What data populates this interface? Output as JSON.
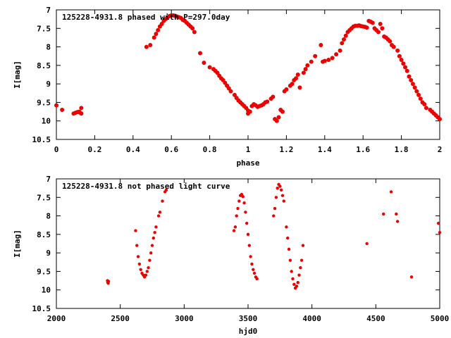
{
  "chart_data": [
    {
      "type": "scatter",
      "title": "125228-4931.8 phased with P=297.0day",
      "xlabel": "phase",
      "ylabel": "I[mag]",
      "xlim": [
        0,
        2
      ],
      "ylim": [
        10.5,
        7
      ],
      "y_inverted": true,
      "xticks": [
        "0",
        "0.2",
        "0.4",
        "0.6",
        "0.8",
        "1",
        "1.2",
        "1.4",
        "1.6",
        "1.8",
        "2"
      ],
      "yticks": [
        "7",
        "7.5",
        "8",
        "8.5",
        "9",
        "9.5",
        "10",
        "10.5"
      ],
      "marker_color": "#ee0000",
      "marker": "filled-circle",
      "points": [
        [
          0.0,
          9.58
        ],
        [
          0.03,
          9.7
        ],
        [
          0.09,
          9.8
        ],
        [
          0.1,
          9.78
        ],
        [
          0.11,
          9.76
        ],
        [
          0.12,
          9.75
        ],
        [
          0.13,
          9.8
        ],
        [
          0.13,
          9.65
        ],
        [
          0.12,
          9.77
        ],
        [
          0.47,
          8.0
        ],
        [
          0.49,
          7.95
        ],
        [
          0.51,
          7.75
        ],
        [
          0.52,
          7.65
        ],
        [
          0.53,
          7.55
        ],
        [
          0.54,
          7.45
        ],
        [
          0.55,
          7.38
        ],
        [
          0.56,
          7.3
        ],
        [
          0.57,
          7.25
        ],
        [
          0.58,
          7.2
        ],
        [
          0.59,
          7.17
        ],
        [
          0.6,
          7.15
        ],
        [
          0.61,
          7.15
        ],
        [
          0.62,
          7.16
        ],
        [
          0.63,
          7.18
        ],
        [
          0.64,
          7.2
        ],
        [
          0.65,
          7.22
        ],
        [
          0.66,
          7.27
        ],
        [
          0.67,
          7.3
        ],
        [
          0.68,
          7.35
        ],
        [
          0.69,
          7.4
        ],
        [
          0.7,
          7.45
        ],
        [
          0.71,
          7.5
        ],
        [
          0.72,
          7.6
        ],
        [
          0.75,
          8.17
        ],
        [
          0.77,
          8.43
        ],
        [
          0.8,
          8.55
        ],
        [
          0.82,
          8.6
        ],
        [
          0.83,
          8.65
        ],
        [
          0.84,
          8.7
        ],
        [
          0.85,
          8.78
        ],
        [
          0.86,
          8.85
        ],
        [
          0.87,
          8.9
        ],
        [
          0.88,
          8.97
        ],
        [
          0.89,
          9.05
        ],
        [
          0.9,
          9.12
        ],
        [
          0.91,
          9.2
        ],
        [
          0.93,
          9.3
        ],
        [
          0.94,
          9.38
        ],
        [
          0.95,
          9.45
        ],
        [
          0.96,
          9.5
        ],
        [
          0.97,
          9.55
        ],
        [
          0.98,
          9.6
        ],
        [
          0.99,
          9.65
        ],
        [
          1.0,
          9.72
        ],
        [
          1.0,
          9.8
        ],
        [
          1.01,
          9.75
        ],
        [
          1.02,
          9.6
        ],
        [
          1.03,
          9.55
        ],
        [
          1.04,
          9.58
        ],
        [
          1.05,
          9.62
        ],
        [
          1.06,
          9.6
        ],
        [
          1.07,
          9.58
        ],
        [
          1.08,
          9.55
        ],
        [
          1.09,
          9.5
        ],
        [
          1.1,
          9.48
        ],
        [
          1.12,
          9.4
        ],
        [
          1.13,
          9.35
        ],
        [
          1.14,
          9.95
        ],
        [
          1.15,
          10.0
        ],
        [
          1.16,
          9.9
        ],
        [
          1.17,
          9.7
        ],
        [
          1.18,
          9.75
        ],
        [
          1.19,
          9.2
        ],
        [
          1.2,
          9.15
        ],
        [
          1.22,
          9.05
        ],
        [
          1.23,
          9.0
        ],
        [
          1.24,
          8.9
        ],
        [
          1.25,
          8.85
        ],
        [
          1.26,
          8.75
        ],
        [
          1.27,
          9.1
        ],
        [
          1.29,
          8.7
        ],
        [
          1.3,
          8.6
        ],
        [
          1.31,
          8.5
        ],
        [
          1.33,
          8.4
        ],
        [
          1.35,
          8.25
        ],
        [
          1.38,
          7.95
        ],
        [
          1.39,
          8.4
        ],
        [
          1.4,
          8.38
        ],
        [
          1.42,
          8.35
        ],
        [
          1.44,
          8.3
        ],
        [
          1.46,
          8.2
        ],
        [
          1.48,
          8.1
        ],
        [
          1.49,
          7.9
        ],
        [
          1.5,
          7.8
        ],
        [
          1.51,
          7.7
        ],
        [
          1.52,
          7.6
        ],
        [
          1.53,
          7.55
        ],
        [
          1.54,
          7.5
        ],
        [
          1.55,
          7.45
        ],
        [
          1.56,
          7.43
        ],
        [
          1.57,
          7.43
        ],
        [
          1.58,
          7.42
        ],
        [
          1.59,
          7.44
        ],
        [
          1.6,
          7.45
        ],
        [
          1.61,
          7.46
        ],
        [
          1.62,
          7.48
        ],
        [
          1.63,
          7.3
        ],
        [
          1.64,
          7.32
        ],
        [
          1.65,
          7.35
        ],
        [
          1.66,
          7.5
        ],
        [
          1.67,
          7.55
        ],
        [
          1.68,
          7.6
        ],
        [
          1.69,
          7.38
        ],
        [
          1.7,
          7.5
        ],
        [
          1.71,
          7.72
        ],
        [
          1.72,
          7.75
        ],
        [
          1.73,
          7.8
        ],
        [
          1.74,
          7.85
        ],
        [
          1.75,
          7.95
        ],
        [
          1.76,
          8.0
        ],
        [
          1.78,
          8.1
        ],
        [
          1.79,
          8.25
        ],
        [
          1.8,
          8.35
        ],
        [
          1.81,
          8.45
        ],
        [
          1.82,
          8.55
        ],
        [
          1.83,
          8.65
        ],
        [
          1.84,
          8.8
        ],
        [
          1.85,
          8.9
        ],
        [
          1.86,
          9.0
        ],
        [
          1.87,
          9.1
        ],
        [
          1.88,
          9.2
        ],
        [
          1.89,
          9.3
        ],
        [
          1.9,
          9.4
        ],
        [
          1.91,
          9.5
        ],
        [
          1.92,
          9.55
        ],
        [
          1.93,
          9.65
        ],
        [
          1.95,
          9.7
        ],
        [
          1.96,
          9.75
        ],
        [
          1.97,
          9.8
        ],
        [
          1.98,
          9.85
        ],
        [
          1.99,
          9.9
        ],
        [
          2.0,
          9.95
        ]
      ]
    },
    {
      "type": "scatter",
      "title": "125228-4931.8 not phased light curve",
      "xlabel": "hjd0",
      "ylabel": "I[mag]",
      "xlim": [
        2000,
        5000
      ],
      "ylim": [
        10.5,
        7
      ],
      "y_inverted": true,
      "xticks": [
        "2000",
        "2500",
        "3000",
        "3500",
        "4000",
        "4500",
        "5000"
      ],
      "yticks": [
        "7",
        "7.5",
        "8",
        "8.5",
        "9",
        "9.5",
        "10",
        "10.5"
      ],
      "marker_color": "#ee0000",
      "marker": "filled-circle",
      "points": [
        [
          2400,
          9.75
        ],
        [
          2402,
          9.8
        ],
        [
          2404,
          9.78
        ],
        [
          2406,
          9.82
        ],
        [
          2408,
          9.77
        ],
        [
          2620,
          8.4
        ],
        [
          2630,
          8.8
        ],
        [
          2640,
          9.1
        ],
        [
          2650,
          9.3
        ],
        [
          2660,
          9.45
        ],
        [
          2670,
          9.55
        ],
        [
          2680,
          9.6
        ],
        [
          2690,
          9.65
        ],
        [
          2700,
          9.6
        ],
        [
          2710,
          9.5
        ],
        [
          2720,
          9.4
        ],
        [
          2730,
          9.2
        ],
        [
          2740,
          9.0
        ],
        [
          2750,
          8.8
        ],
        [
          2760,
          8.6
        ],
        [
          2770,
          8.45
        ],
        [
          2780,
          8.3
        ],
        [
          2800,
          8.0
        ],
        [
          2810,
          7.9
        ],
        [
          2830,
          7.6
        ],
        [
          2850,
          7.35
        ],
        [
          2860,
          7.3
        ],
        [
          3390,
          8.4
        ],
        [
          3400,
          8.3
        ],
        [
          3410,
          8.0
        ],
        [
          3420,
          7.8
        ],
        [
          3430,
          7.6
        ],
        [
          3440,
          7.45
        ],
        [
          3450,
          7.42
        ],
        [
          3460,
          7.48
        ],
        [
          3470,
          7.65
        ],
        [
          3480,
          7.9
        ],
        [
          3490,
          8.2
        ],
        [
          3500,
          8.5
        ],
        [
          3510,
          8.8
        ],
        [
          3520,
          9.1
        ],
        [
          3530,
          9.3
        ],
        [
          3540,
          9.45
        ],
        [
          3550,
          9.55
        ],
        [
          3560,
          9.65
        ],
        [
          3570,
          9.7
        ],
        [
          3700,
          8.0
        ],
        [
          3710,
          7.8
        ],
        [
          3720,
          7.5
        ],
        [
          3730,
          7.25
        ],
        [
          3740,
          7.15
        ],
        [
          3750,
          7.2
        ],
        [
          3760,
          7.3
        ],
        [
          3770,
          7.45
        ],
        [
          3780,
          7.6
        ],
        [
          3800,
          8.3
        ],
        [
          3810,
          8.6
        ],
        [
          3820,
          8.9
        ],
        [
          3830,
          9.2
        ],
        [
          3840,
          9.5
        ],
        [
          3850,
          9.7
        ],
        [
          3860,
          9.85
        ],
        [
          3870,
          9.95
        ],
        [
          3880,
          9.9
        ],
        [
          3890,
          9.8
        ],
        [
          3900,
          9.6
        ],
        [
          3910,
          9.4
        ],
        [
          3920,
          9.2
        ],
        [
          3930,
          8.8
        ],
        [
          4430,
          8.75
        ],
        [
          4560,
          7.95
        ],
        [
          4620,
          7.35
        ],
        [
          4660,
          7.95
        ],
        [
          4670,
          8.15
        ],
        [
          4780,
          9.65
        ],
        [
          4990,
          8.2
        ],
        [
          5000,
          8.45
        ]
      ]
    }
  ]
}
